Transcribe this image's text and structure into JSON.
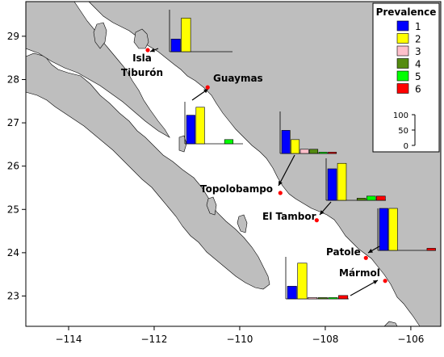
{
  "map": {
    "x_ticks": [
      {
        "value": -114,
        "label": "−114"
      },
      {
        "value": -112,
        "label": "−112"
      },
      {
        "value": -110,
        "label": "−110"
      },
      {
        "value": -108,
        "label": "−108"
      },
      {
        "value": -106,
        "label": "−106"
      }
    ],
    "y_ticks": [
      {
        "value": 29,
        "label": "29"
      },
      {
        "value": 28,
        "label": "28"
      },
      {
        "value": 27,
        "label": "27"
      },
      {
        "value": 26,
        "label": "26"
      },
      {
        "value": 25,
        "label": "25"
      },
      {
        "value": 24,
        "label": "24"
      },
      {
        "value": 23,
        "label": "23"
      }
    ],
    "lon_range": [
      -115,
      -105.3
    ],
    "lat_range": [
      22.3,
      29.8
    ],
    "land_color": "#bebebe",
    "sea_color": "#ffffff",
    "site_marker_color": "#ff0000"
  },
  "legend": {
    "title": "Prevalence",
    "items": [
      {
        "label": "1",
        "color": "#0000ff"
      },
      {
        "label": "2",
        "color": "#ffff00"
      },
      {
        "label": "3",
        "color": "#ffc0cb"
      },
      {
        "label": "4",
        "color": "#548b10"
      },
      {
        "label": "5",
        "color": "#00ff00"
      },
      {
        "label": "6",
        "color": "#ff0000"
      }
    ],
    "scale_ticks": [
      "100",
      "50",
      "0"
    ]
  },
  "sites": [
    {
      "name": "Isla Tiburón",
      "label_lines": [
        "Isla",
        "Tiburón"
      ],
      "lon": -112.15,
      "lat": 28.68,
      "values": [
        30,
        80,
        0,
        0,
        0,
        0
      ]
    },
    {
      "name": "Guaymas",
      "label_lines": [
        "Guaymas"
      ],
      "lon": -110.75,
      "lat": 27.82,
      "values": [
        68,
        87,
        0,
        0,
        10,
        0
      ]
    },
    {
      "name": "Topolobampo",
      "label_lines": [
        "Topolobampo"
      ],
      "lon": -109.05,
      "lat": 25.38,
      "values": [
        55,
        33,
        10,
        10,
        3,
        3
      ]
    },
    {
      "name": "El Tambor",
      "label_lines": [
        "El Tambor"
      ],
      "lon": -108.2,
      "lat": 24.75,
      "values": [
        75,
        88,
        0,
        5,
        10,
        10
      ]
    },
    {
      "name": "Patole",
      "label_lines": [
        "Patole"
      ],
      "lon": -107.05,
      "lat": 23.88,
      "values": [
        100,
        100,
        0,
        0,
        0,
        5
      ]
    },
    {
      "name": "Mármol",
      "label_lines": [
        "Mármol"
      ],
      "lon": -106.6,
      "lat": 23.35,
      "values": [
        30,
        85,
        3,
        3,
        3,
        8
      ]
    }
  ]
}
